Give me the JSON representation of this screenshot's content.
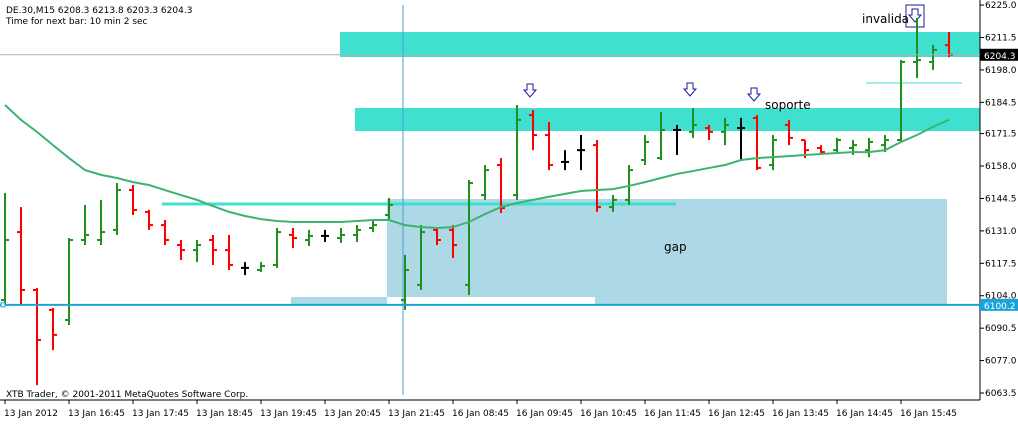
{
  "chart_data": {
    "type": "ohlc",
    "header": "DE.30,M15  6208.3 6213.8 6203.3 6204.3",
    "subheader": "Time for next bar: 10 min 2 sec",
    "footer": "XTB Trader, © 2001-2011 MetaQuotes Software Corp.",
    "annotations": [
      "invalida",
      "soporte",
      "gap"
    ],
    "categories": [
      "13 Jan 2012",
      null,
      null,
      null,
      "13 Jan 16:45",
      null,
      null,
      null,
      "13 Jan 17:45",
      null,
      null,
      null,
      "13 Jan 18:45",
      null,
      null,
      null,
      "13 Jan 19:45",
      null,
      null,
      null,
      "13 Jan 20:45",
      null,
      null,
      null,
      "13 Jan 21:45",
      null,
      null,
      null,
      "16 Jan 08:45",
      null,
      null,
      null,
      "16 Jan 09:45",
      null,
      null,
      null,
      "16 Jan 10:45",
      null,
      null,
      null,
      "16 Jan 11:45",
      null,
      null,
      null,
      "16 Jan 12:45",
      null,
      null,
      null,
      "16 Jan 13:45",
      null,
      null,
      null,
      "16 Jan 14:45",
      null,
      null,
      null,
      "16 Jan 15:45",
      null,
      null,
      null
    ],
    "open": [
      6102.2,
      6130.5,
      6106.4,
      6098.1,
      6093.9,
      6127.2,
      6127.2,
      6131.4,
      6148.0,
      6138.9,
      6133.4,
      6125.1,
      6123.0,
      6127.2,
      6123.0,
      6115.6,
      6114.7,
      6116.8,
      6129.3,
      6127.2,
      6128.9,
      6128.0,
      6129.3,
      6132.2,
      6137.6,
      6102.2,
      6108.5,
      6131.4,
      6131.4,
      6108.5,
      6145.9,
      6158.4,
      6145.9,
      6179.2,
      6170.9,
      6159.7,
      6164.6,
      6166.7,
      6140.9,
      6143.9,
      6160.5,
      6161.3,
      6173.0,
      6172.2,
      6173.8,
      6172.2,
      6173.8,
      6178.0,
      6158.4,
      6175.1,
      6168.8,
      6165.5,
      6164.6,
      6165.5,
      6164.6,
      6166.7,
      6168.8,
      6201.3,
      6201.3,
      6208.3
    ],
    "high": [
      6146.8,
      6140.9,
      6107.2,
      6098.9,
      6128.0,
      6141.8,
      6143.9,
      6150.9,
      6150.1,
      6139.7,
      6135.5,
      6127.2,
      6127.2,
      6129.3,
      6129.3,
      6118.0,
      6118.0,
      6132.2,
      6132.2,
      6131.4,
      6131.4,
      6132.2,
      6133.4,
      6135.5,
      6144.7,
      6121.0,
      6133.4,
      6132.6,
      6133.4,
      6152.2,
      6158.4,
      6161.3,
      6183.4,
      6181.3,
      6176.3,
      6164.6,
      6170.9,
      6168.8,
      6145.9,
      6158.4,
      6170.9,
      6180.5,
      6175.1,
      6182.1,
      6175.1,
      6178.0,
      6178.0,
      6179.2,
      6170.9,
      6177.2,
      6168.8,
      6166.7,
      6169.7,
      6168.8,
      6169.7,
      6170.9,
      6202.1,
      6219.6,
      6208.4,
      6213.8
    ],
    "low": [
      6100.2,
      6100.2,
      6066.8,
      6081.4,
      6091.8,
      6125.1,
      6125.1,
      6129.3,
      6137.6,
      6131.4,
      6125.1,
      6118.9,
      6118.0,
      6116.8,
      6114.7,
      6112.6,
      6113.9,
      6115.6,
      6123.9,
      6124.7,
      6126.4,
      6126.0,
      6126.4,
      6130.5,
      6135.5,
      6098.1,
      6106.4,
      6125.1,
      6119.7,
      6104.3,
      6143.9,
      6138.4,
      6143.9,
      6164.6,
      6156.3,
      6156.3,
      6156.3,
      6138.9,
      6138.9,
      6141.8,
      6158.4,
      6160.5,
      6162.6,
      6169.7,
      6168.8,
      6166.7,
      6160.5,
      6156.3,
      6156.3,
      6166.7,
      6161.3,
      6162.6,
      6163.8,
      6162.6,
      6161.7,
      6163.8,
      6168.0,
      6194.6,
      6198.0,
      6203.3
    ],
    "close": [
      6127.2,
      6106.4,
      6085.6,
      6087.7,
      6127.2,
      6129.3,
      6130.5,
      6148.0,
      6139.7,
      6133.4,
      6127.2,
      6123.0,
      6125.1,
      6123.0,
      6116.8,
      6115.6,
      6116.4,
      6130.5,
      6128.0,
      6128.9,
      6128.9,
      6129.3,
      6131.4,
      6133.4,
      6141.8,
      6114.7,
      6130.5,
      6127.2,
      6125.1,
      6150.9,
      6156.3,
      6140.5,
      6177.2,
      6170.9,
      6158.4,
      6159.7,
      6164.6,
      6140.9,
      6143.9,
      6156.3,
      6168.0,
      6173.0,
      6173.0,
      6175.1,
      6172.2,
      6175.1,
      6173.8,
      6157.2,
      6168.8,
      6169.7,
      6164.6,
      6163.8,
      6168.8,
      6166.7,
      6168.0,
      6168.8,
      6201.3,
      6202.1,
      6206.3,
      6204.3
    ],
    "ma": [
      6183.4,
      6177.2,
      6172.2,
      6166.7,
      6161.3,
      6156.3,
      6154.3,
      6153.0,
      6151.3,
      6150.1,
      6148.0,
      6145.9,
      6143.9,
      6141.3,
      6138.9,
      6137.2,
      6135.9,
      6135.1,
      6134.7,
      6134.7,
      6134.7,
      6134.7,
      6135.1,
      6135.5,
      6135.5,
      6133.4,
      6132.6,
      6132.2,
      6132.6,
      6134.7,
      6138.0,
      6140.9,
      6142.6,
      6143.9,
      6145.2,
      6146.4,
      6147.6,
      6148.0,
      6148.4,
      6149.7,
      6151.3,
      6153.0,
      6154.7,
      6155.9,
      6157.2,
      6158.4,
      6160.5,
      6161.3,
      6161.7,
      6162.1,
      6162.6,
      6163.0,
      6163.4,
      6163.8,
      6163.8,
      6164.6,
      6168.0,
      6170.9,
      6174.3,
      6177.2
    ],
    "colors": {
      "up": "#1f8f1f",
      "down": "#ff0000",
      "flat": "#000000",
      "ma": "#3cb371"
    },
    "price_lines": [
      {
        "value": 6204.3,
        "color": "#000000",
        "line": "#b0b0b0"
      },
      {
        "value": 6100.2,
        "color": "#1aa3d9",
        "line": "#1aa3d9"
      }
    ],
    "ylim": [
      6060.6,
      6227.1
    ],
    "yticks": [
      {
        "value": 6225,
        "label": "6225.0"
      },
      6211.5,
      {
        "value": 6198,
        "label": "6198.0"
      },
      6184.5,
      6171.5,
      {
        "value": 6158,
        "label": "6158.0"
      },
      6144.5,
      {
        "value": 6131,
        "label": "6131.0"
      },
      6117.5,
      {
        "value": 6104,
        "label": "6104.0"
      },
      6090.5,
      {
        "value": 6077,
        "label": "6077.0"
      },
      6063.5
    ]
  }
}
